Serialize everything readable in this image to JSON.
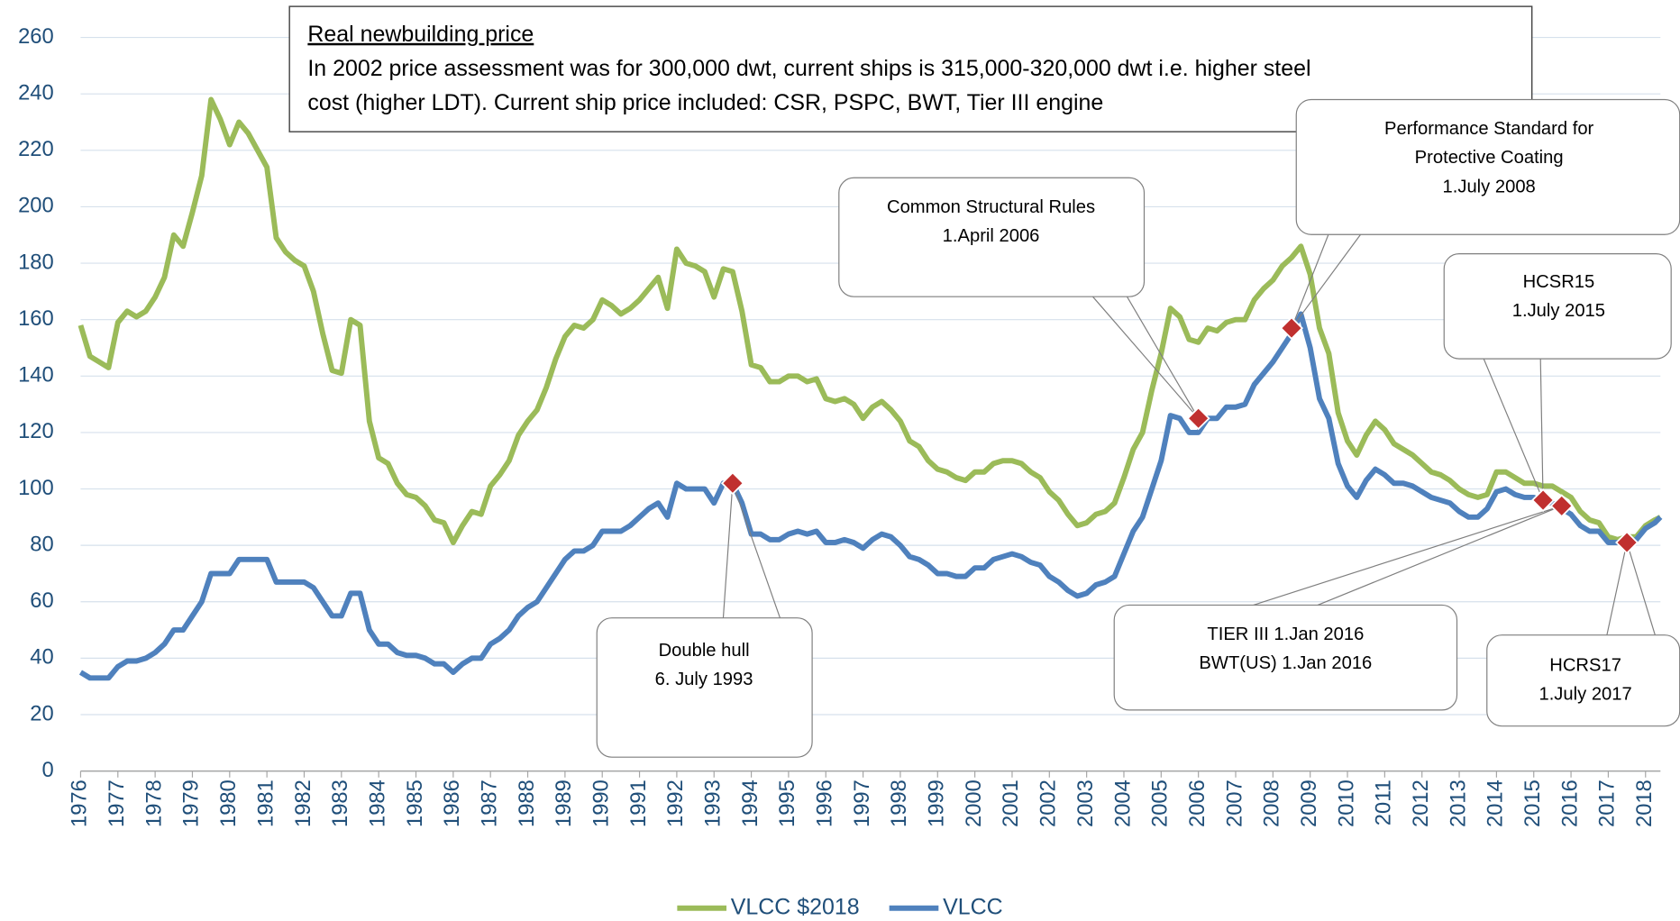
{
  "chart_data": {
    "type": "line",
    "note": {
      "title": "Real newbuilding price",
      "lines": [
        "In 2002 price assessment was for 300,000 dwt, current ships is 315,000-320,000 dwt i.e. higher steel",
        "cost (higher LDT). Current ship price included: CSR, PSPC, BWT, Tier III engine"
      ]
    },
    "xlim": [
      1976,
      2018.4
    ],
    "xticks": [
      1976,
      1977,
      1978,
      1979,
      1980,
      1981,
      1982,
      1983,
      1984,
      1985,
      1986,
      1987,
      1988,
      1989,
      1990,
      1991,
      1992,
      1993,
      1994,
      1995,
      1996,
      1997,
      1998,
      1999,
      2000,
      2001,
      2002,
      2003,
      2004,
      2005,
      2006,
      2007,
      2008,
      2009,
      2010,
      2011,
      2012,
      2013,
      2014,
      2015,
      2016,
      2017,
      2018
    ],
    "ylim": [
      0,
      260
    ],
    "yticks": [
      0,
      20,
      40,
      60,
      80,
      100,
      120,
      140,
      160,
      180,
      200,
      220,
      240,
      260
    ],
    "grid": true,
    "legend": "bottom",
    "x": [
      1976,
      1976.25,
      1976.5,
      1976.75,
      1977,
      1977.25,
      1977.5,
      1977.75,
      1978,
      1978.25,
      1978.5,
      1978.75,
      1979,
      1979.25,
      1979.5,
      1979.75,
      1980,
      1980.25,
      1980.5,
      1980.75,
      1981,
      1981.25,
      1981.5,
      1981.75,
      1982,
      1982.25,
      1982.5,
      1982.75,
      1983,
      1983.25,
      1983.5,
      1983.75,
      1984,
      1984.25,
      1984.5,
      1984.75,
      1985,
      1985.25,
      1985.5,
      1985.75,
      1986,
      1986.25,
      1986.5,
      1986.75,
      1987,
      1987.25,
      1987.5,
      1987.75,
      1988,
      1988.25,
      1988.5,
      1988.75,
      1989,
      1989.25,
      1989.5,
      1989.75,
      1990,
      1990.25,
      1990.5,
      1990.75,
      1991,
      1991.25,
      1991.5,
      1991.75,
      1992,
      1992.25,
      1992.5,
      1992.75,
      1993,
      1993.25,
      1993.5,
      1993.75,
      1994,
      1994.25,
      1994.5,
      1994.75,
      1995,
      1995.25,
      1995.5,
      1995.75,
      1996,
      1996.25,
      1996.5,
      1996.75,
      1997,
      1997.25,
      1997.5,
      1997.75,
      1998,
      1998.25,
      1998.5,
      1998.75,
      1999,
      1999.25,
      1999.5,
      1999.75,
      2000,
      2000.25,
      2000.5,
      2000.75,
      2001,
      2001.25,
      2001.5,
      2001.75,
      2002,
      2002.25,
      2002.5,
      2002.75,
      2003,
      2003.25,
      2003.5,
      2003.75,
      2004,
      2004.25,
      2004.5,
      2004.75,
      2005,
      2005.25,
      2005.5,
      2005.75,
      2006,
      2006.25,
      2006.5,
      2006.75,
      2007,
      2007.25,
      2007.5,
      2007.75,
      2008,
      2008.25,
      2008.5,
      2008.75,
      2009,
      2009.25,
      2009.5,
      2009.75,
      2010,
      2010.25,
      2010.5,
      2010.75,
      2011,
      2011.25,
      2011.5,
      2011.75,
      2012,
      2012.25,
      2012.5,
      2012.75,
      2013,
      2013.25,
      2013.5,
      2013.75,
      2014,
      2014.25,
      2014.5,
      2014.75,
      2015,
      2015.25,
      2015.5,
      2015.75,
      2016,
      2016.25,
      2016.5,
      2016.75,
      2017,
      2017.25,
      2017.5,
      2017.75,
      2018,
      2018.25,
      2018.4
    ],
    "series": [
      {
        "name": "VLCC $2018",
        "color": "#9bbb59",
        "values": [
          158,
          147,
          145,
          143,
          159,
          163,
          161,
          163,
          168,
          175,
          190,
          186,
          198,
          211,
          238,
          231,
          222,
          230,
          226,
          220,
          214,
          189,
          184,
          181,
          179,
          170,
          155,
          142,
          141,
          160,
          158,
          124,
          111,
          109,
          102,
          98,
          97,
          94,
          89,
          88,
          81,
          87,
          92,
          91,
          101,
          105,
          110,
          119,
          124,
          128,
          136,
          146,
          154,
          158,
          157,
          160,
          167,
          165,
          162,
          164,
          167,
          171,
          175,
          164,
          185,
          180,
          179,
          177,
          168,
          178,
          177,
          163,
          144,
          143,
          138,
          138,
          140,
          140,
          138,
          139,
          132,
          131,
          132,
          130,
          125,
          129,
          131,
          128,
          124,
          117,
          115,
          110,
          107,
          106,
          104,
          103,
          106,
          106,
          109,
          110,
          110,
          109,
          106,
          104,
          99,
          96,
          91,
          87,
          88,
          91,
          92,
          95,
          104,
          114,
          120,
          135,
          148,
          164,
          161,
          153,
          152,
          157,
          156,
          159,
          160,
          160,
          167,
          171,
          174,
          179,
          182,
          186,
          176,
          157,
          148,
          127,
          117,
          112,
          119,
          124,
          121,
          116,
          114,
          112,
          109,
          106,
          105,
          103,
          100,
          98,
          97,
          98,
          106,
          106,
          104,
          102,
          102,
          101,
          101,
          99,
          97,
          92,
          89,
          88,
          83,
          82,
          83,
          83,
          87,
          89,
          90
        ]
      },
      {
        "name": "VLCC",
        "color": "#4f81bd",
        "values": [
          35,
          33,
          33,
          33,
          37,
          39,
          39,
          40,
          42,
          45,
          50,
          50,
          55,
          60,
          70,
          70,
          70,
          75,
          75,
          75,
          75,
          67,
          67,
          67,
          67,
          65,
          60,
          55,
          55,
          63,
          63,
          50,
          45,
          45,
          42,
          41,
          41,
          40,
          38,
          38,
          35,
          38,
          40,
          40,
          45,
          47,
          50,
          55,
          58,
          60,
          65,
          70,
          75,
          78,
          78,
          80,
          85,
          85,
          85,
          87,
          90,
          93,
          95,
          90,
          102,
          100,
          100,
          100,
          95,
          102,
          102,
          95,
          84,
          84,
          82,
          82,
          84,
          85,
          84,
          85,
          81,
          81,
          82,
          81,
          79,
          82,
          84,
          83,
          80,
          76,
          75,
          73,
          70,
          70,
          69,
          69,
          72,
          72,
          75,
          76,
          77,
          76,
          74,
          73,
          69,
          67,
          64,
          62,
          63,
          66,
          67,
          69,
          77,
          85,
          90,
          100,
          110,
          126,
          125,
          120,
          120,
          125,
          125,
          129,
          129,
          130,
          137,
          141,
          145,
          150,
          155,
          162,
          150,
          132,
          125,
          109,
          101,
          97,
          103,
          107,
          105,
          102,
          102,
          101,
          99,
          97,
          96,
          95,
          92,
          90,
          90,
          93,
          99,
          100,
          98,
          97,
          97,
          95,
          95,
          93,
          91,
          87,
          85,
          85,
          81,
          81,
          81,
          82,
          86,
          88,
          90
        ]
      }
    ],
    "marker_color": "#c0302f",
    "annotations": [
      {
        "lines": [
          "Double hull",
          "6. July 1993"
        ],
        "x": 1993.5,
        "y": 102
      },
      {
        "lines": [
          "Common Structural Rules",
          "1.April 2006"
        ],
        "x": 2006,
        "y": 125
      },
      {
        "lines": [
          "Performance Standard for",
          "Protective Coating",
          "1.July 2008"
        ],
        "x": 2008.5,
        "y": 157
      },
      {
        "lines": [
          "HCSR15",
          "1.July 2015"
        ],
        "x": 2015.25,
        "y": 96
      },
      {
        "lines": [
          "TIER III 1.Jan 2016",
          "BWT(US) 1.Jan 2016"
        ],
        "x": 2015.75,
        "y": 94
      },
      {
        "lines": [
          "HCRS17",
          "1.July 2017"
        ],
        "x": 2017.5,
        "y": 81
      }
    ]
  }
}
